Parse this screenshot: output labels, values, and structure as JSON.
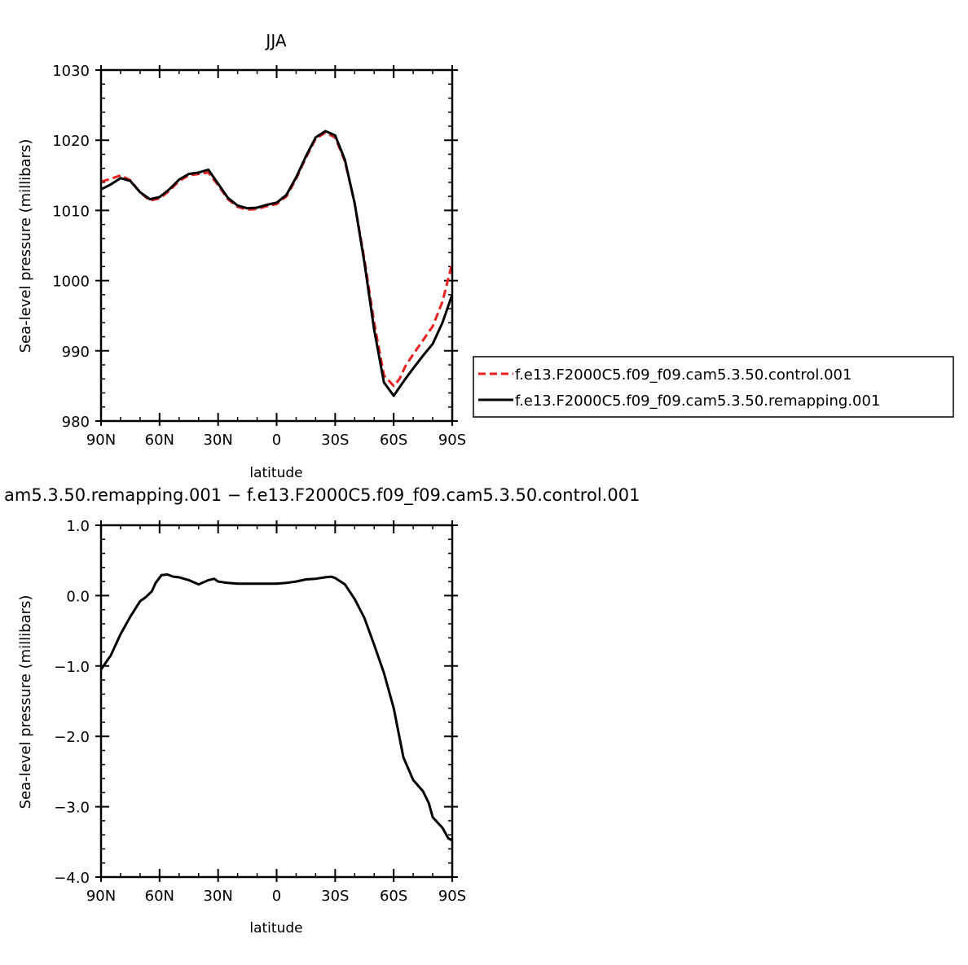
{
  "chart_data": [
    {
      "type": "line",
      "title": "JJA",
      "xlabel": "latitude",
      "ylabel": "Sea-level pressure (millibars)",
      "xlim": [
        90,
        -90
      ],
      "ylim": [
        980,
        1030
      ],
      "x_ticks": [
        {
          "value": 90,
          "label": "90N"
        },
        {
          "value": 60,
          "label": "60N"
        },
        {
          "value": 30,
          "label": "30N"
        },
        {
          "value": 0,
          "label": "0"
        },
        {
          "value": -30,
          "label": "30S"
        },
        {
          "value": -60,
          "label": "60S"
        },
        {
          "value": -90,
          "label": "90S"
        }
      ],
      "y_ticks": [
        {
          "value": 1030,
          "label": "1030"
        },
        {
          "value": 1020,
          "label": "1020"
        },
        {
          "value": 1010,
          "label": "1010"
        },
        {
          "value": 1000,
          "label": "1000"
        },
        {
          "value": 990,
          "label": "990"
        },
        {
          "value": 980,
          "label": "980"
        }
      ],
      "legend_position": "right",
      "series": [
        {
          "name": "f.e13.F2000C5.f09_f09.cam5.3.50.control.001",
          "color": "#e8201e",
          "dash": "dashed",
          "x": [
            90,
            85,
            80,
            75,
            70,
            65,
            60,
            55,
            50,
            45,
            40,
            35,
            30,
            25,
            20,
            15,
            10,
            5,
            0,
            -5,
            -10,
            -15,
            -20,
            -25,
            -30,
            -35,
            -40,
            -45,
            -50,
            -55,
            -60,
            -63,
            -66,
            -70,
            -75,
            -80,
            -85,
            -90
          ],
          "y": [
            1014.1,
            1014.5,
            1015.0,
            1014.3,
            1012.6,
            1011.4,
            1011.7,
            1012.8,
            1014.2,
            1015.0,
            1015.2,
            1015.4,
            1013.6,
            1011.6,
            1010.5,
            1010.1,
            1010.2,
            1010.6,
            1010.9,
            1012.0,
            1014.5,
            1017.5,
            1020.2,
            1021.1,
            1020.4,
            1017.0,
            1011.0,
            1003.0,
            994.0,
            986.5,
            985.0,
            986.0,
            987.8,
            989.5,
            991.5,
            993.5,
            997.0,
            1002.5
          ]
        },
        {
          "name": "f.e13.F2000C5.f09_f09.cam5.3.50.remapping.001",
          "color": "#000000",
          "dash": "solid",
          "x": [
            90,
            85,
            80,
            75,
            70,
            65,
            60,
            55,
            50,
            45,
            40,
            35,
            30,
            25,
            20,
            15,
            10,
            5,
            0,
            -5,
            -10,
            -15,
            -20,
            -25,
            -30,
            -35,
            -40,
            -45,
            -50,
            -55,
            -60,
            -63,
            -66,
            -70,
            -75,
            -80,
            -85,
            -90
          ],
          "y": [
            1013.0,
            1013.7,
            1014.6,
            1014.2,
            1012.6,
            1011.6,
            1011.9,
            1013.0,
            1014.4,
            1015.2,
            1015.4,
            1015.8,
            1013.8,
            1011.8,
            1010.7,
            1010.3,
            1010.4,
            1010.8,
            1011.1,
            1012.2,
            1014.7,
            1017.7,
            1020.4,
            1021.3,
            1020.7,
            1017.2,
            1011.0,
            1002.5,
            993.0,
            985.5,
            983.6,
            984.8,
            986.0,
            987.5,
            989.3,
            991.0,
            994.0,
            998.0
          ]
        }
      ]
    },
    {
      "type": "line",
      "title": "am5.3.50.remapping.001 − f.e13.F2000C5.f09_f09.cam5.3.50.control.001",
      "xlabel": "latitude",
      "ylabel": "Sea-level pressure (millibars)",
      "xlim": [
        90,
        -90
      ],
      "ylim": [
        -4.0,
        1.0
      ],
      "x_ticks": [
        {
          "value": 90,
          "label": "90N"
        },
        {
          "value": 60,
          "label": "60N"
        },
        {
          "value": 30,
          "label": "30N"
        },
        {
          "value": 0,
          "label": "0"
        },
        {
          "value": -30,
          "label": "30S"
        },
        {
          "value": -60,
          "label": "60S"
        },
        {
          "value": -90,
          "label": "90S"
        }
      ],
      "y_ticks": [
        {
          "value": 1.0,
          "label": "1.0"
        },
        {
          "value": 0.0,
          "label": "0.0"
        },
        {
          "value": -1.0,
          "label": "−1.0"
        },
        {
          "value": -2.0,
          "label": "−2.0"
        },
        {
          "value": -3.0,
          "label": "−3.0"
        },
        {
          "value": -4.0,
          "label": "−4.0"
        }
      ],
      "series": [
        {
          "color": "#000000",
          "dash": "solid",
          "x": [
            90,
            85,
            80,
            75,
            70,
            67,
            64,
            62,
            59,
            56,
            53,
            50,
            45,
            40,
            35,
            32,
            30,
            25,
            20,
            15,
            10,
            5,
            0,
            -5,
            -10,
            -15,
            -20,
            -25,
            -28,
            -30,
            -35,
            -40,
            -45,
            -50,
            -55,
            -60,
            -65,
            -70,
            -75,
            -78,
            -80,
            -85,
            -88,
            -90
          ],
          "y": [
            -1.05,
            -0.85,
            -0.55,
            -0.3,
            -0.08,
            -0.02,
            0.06,
            0.18,
            0.29,
            0.3,
            0.27,
            0.26,
            0.22,
            0.16,
            0.22,
            0.24,
            0.2,
            0.18,
            0.17,
            0.17,
            0.17,
            0.17,
            0.17,
            0.18,
            0.2,
            0.23,
            0.24,
            0.26,
            0.27,
            0.25,
            0.16,
            -0.05,
            -0.32,
            -0.7,
            -1.1,
            -1.6,
            -2.3,
            -2.62,
            -2.78,
            -2.95,
            -3.15,
            -3.3,
            -3.45,
            -3.48
          ]
        }
      ]
    }
  ]
}
